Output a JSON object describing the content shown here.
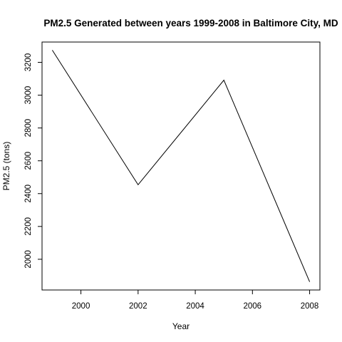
{
  "chart_data": {
    "type": "line",
    "title": "PM2.5 Generated between years 1999-2008 in Baltimore City, MD",
    "xlabel": "Year",
    "ylabel": "PM2.5 (tons)",
    "x": [
      1999,
      2002,
      2005,
      2008
    ],
    "y": [
      3274.18,
      2453.92,
      3091.35,
      1862.28
    ],
    "xticks": [
      2000,
      2002,
      2004,
      2006,
      2008
    ],
    "yticks": [
      2000,
      2200,
      2400,
      2600,
      2800,
      3000,
      3200
    ],
    "xlim": [
      1998.64,
      2008.36
    ],
    "ylim": [
      1812.83,
      3323.63
    ],
    "grid": false,
    "line_color": "#000000"
  }
}
